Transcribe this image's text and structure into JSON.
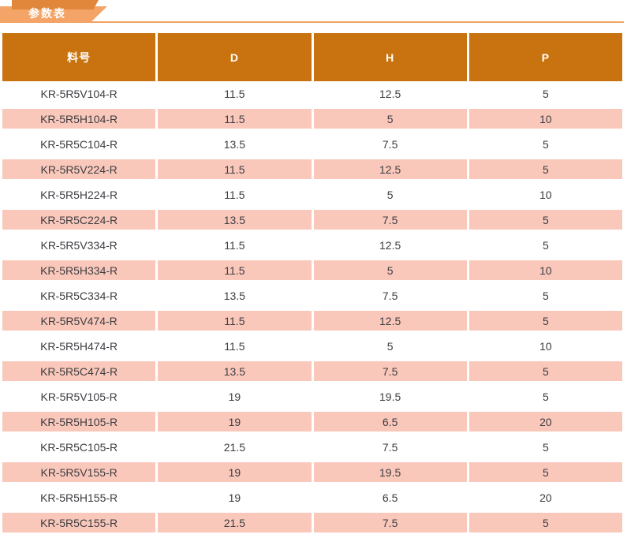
{
  "banner": {
    "label": "参数表",
    "tab_color_light": "#f4a466",
    "tab_color_dark": "#e0873c",
    "line_color": "#efa465",
    "text_color": "#ffffff"
  },
  "table": {
    "header_bg": "#c8730f",
    "header_text_color": "#ffffff",
    "row_bg": "#ffffff",
    "row_alt_bg": "#fac8ba",
    "cell_text_color": "#3d3d42",
    "columns": [
      "料号",
      "D",
      "H",
      "P"
    ],
    "rows": [
      [
        "KR-5R5V104-R",
        "11.5",
        "12.5",
        "5"
      ],
      [
        "KR-5R5H104-R",
        "11.5",
        "5",
        "10"
      ],
      [
        "KR-5R5C104-R",
        "13.5",
        "7.5",
        "5"
      ],
      [
        "KR-5R5V224-R",
        "11.5",
        "12.5",
        "5"
      ],
      [
        "KR-5R5H224-R",
        "11.5",
        "5",
        "10"
      ],
      [
        "KR-5R5C224-R",
        "13.5",
        "7.5",
        "5"
      ],
      [
        "KR-5R5V334-R",
        "11.5",
        "12.5",
        "5"
      ],
      [
        "KR-5R5H334-R",
        "11.5",
        "5",
        "10"
      ],
      [
        "KR-5R5C334-R",
        "13.5",
        "7.5",
        "5"
      ],
      [
        "KR-5R5V474-R",
        "11.5",
        "12.5",
        "5"
      ],
      [
        "KR-5R5H474-R",
        "11.5",
        "5",
        "10"
      ],
      [
        "KR-5R5C474-R",
        "13.5",
        "7.5",
        "5"
      ],
      [
        "KR-5R5V105-R",
        "19",
        "19.5",
        "5"
      ],
      [
        "KR-5R5H105-R",
        "19",
        "6.5",
        "20"
      ],
      [
        "KR-5R5C105-R",
        "21.5",
        "7.5",
        "5"
      ],
      [
        "KR-5R5V155-R",
        "19",
        "19.5",
        "5"
      ],
      [
        "KR-5R5H155-R",
        "19",
        "6.5",
        "20"
      ],
      [
        "KR-5R5C155-R",
        "21.5",
        "7.5",
        "5"
      ]
    ]
  }
}
